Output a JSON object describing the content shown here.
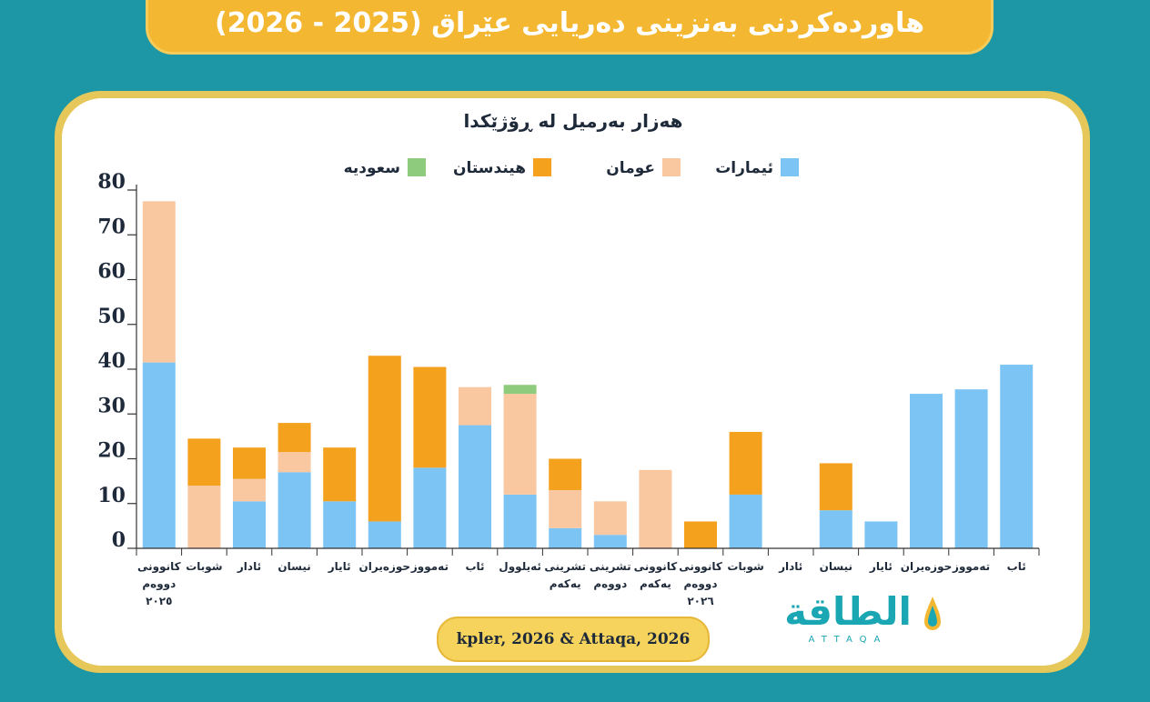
{
  "header": {
    "title": "هاوردەکردنی بەنزینی دەریایی عێراق (2025 - 2026)"
  },
  "source": {
    "text": "kpler, 2026 & Attaqa, 2026"
  },
  "logo": {
    "text": "الطاقة",
    "sub": "ATTAQA"
  },
  "colors": {
    "uae": "#7cc4f4",
    "oman": "#fac8a0",
    "india": "#f4a11d",
    "saudi": "#8ecb7c",
    "axis": "#333333"
  },
  "chart_data": {
    "type": "bar",
    "stacked": true,
    "title": "هەزار بەرمیل لە ڕۆژێکدا",
    "ylim": [
      0,
      80
    ],
    "yticks": [
      0,
      10,
      20,
      30,
      40,
      50,
      60,
      70,
      80
    ],
    "legend": {
      "placement": "top"
    },
    "categories": [
      [
        "کانوونی",
        "دووەم",
        "٢٠٢٥"
      ],
      [
        "شوبات"
      ],
      [
        "ئادار"
      ],
      [
        "نیسان"
      ],
      [
        "ئایار"
      ],
      [
        "حوزەیران"
      ],
      [
        "تەمووز"
      ],
      [
        "ئاب"
      ],
      [
        "ئەیلوول"
      ],
      [
        "تشرینی",
        "یەکەم"
      ],
      [
        "تشرینی",
        "دووەم"
      ],
      [
        "کانوونی",
        "یەکەم"
      ],
      [
        "کانوونی",
        "دووەم",
        "٢٠٢٦"
      ],
      [
        "شوبات"
      ],
      [
        "ئادار"
      ],
      [
        "نیسان"
      ],
      [
        "ئایار"
      ],
      [
        "حوزەیران"
      ],
      [
        "تەمووز"
      ],
      [
        "ئاب"
      ]
    ],
    "series": [
      {
        "name": "ئیمارات",
        "color": "#7cc4f4",
        "values": [
          41.5,
          0,
          10.5,
          17,
          10.5,
          6,
          18,
          27.5,
          12,
          4.5,
          3,
          0,
          0,
          12,
          0,
          8.5,
          6,
          34.5,
          35.5,
          41
        ]
      },
      {
        "name": "عومان",
        "color": "#fac8a0",
        "values": [
          36,
          14,
          5,
          4.5,
          0,
          0,
          0,
          8.5,
          22.5,
          8.5,
          7.5,
          17.5,
          0,
          0,
          0,
          0,
          0,
          0,
          0,
          0
        ]
      },
      {
        "name": "هیندستان",
        "color": "#f4a11d",
        "values": [
          0,
          10.5,
          7,
          6.5,
          12,
          37,
          22.5,
          0,
          0,
          7,
          0,
          0,
          6,
          14,
          0,
          10.5,
          0,
          0,
          0,
          0
        ]
      },
      {
        "name": "سعودیە",
        "color": "#8ecb7c",
        "values": [
          0,
          0,
          0,
          0,
          0,
          0,
          0,
          0,
          2,
          0,
          0,
          0,
          0,
          0,
          0,
          0,
          0,
          0,
          0,
          0
        ]
      }
    ]
  }
}
